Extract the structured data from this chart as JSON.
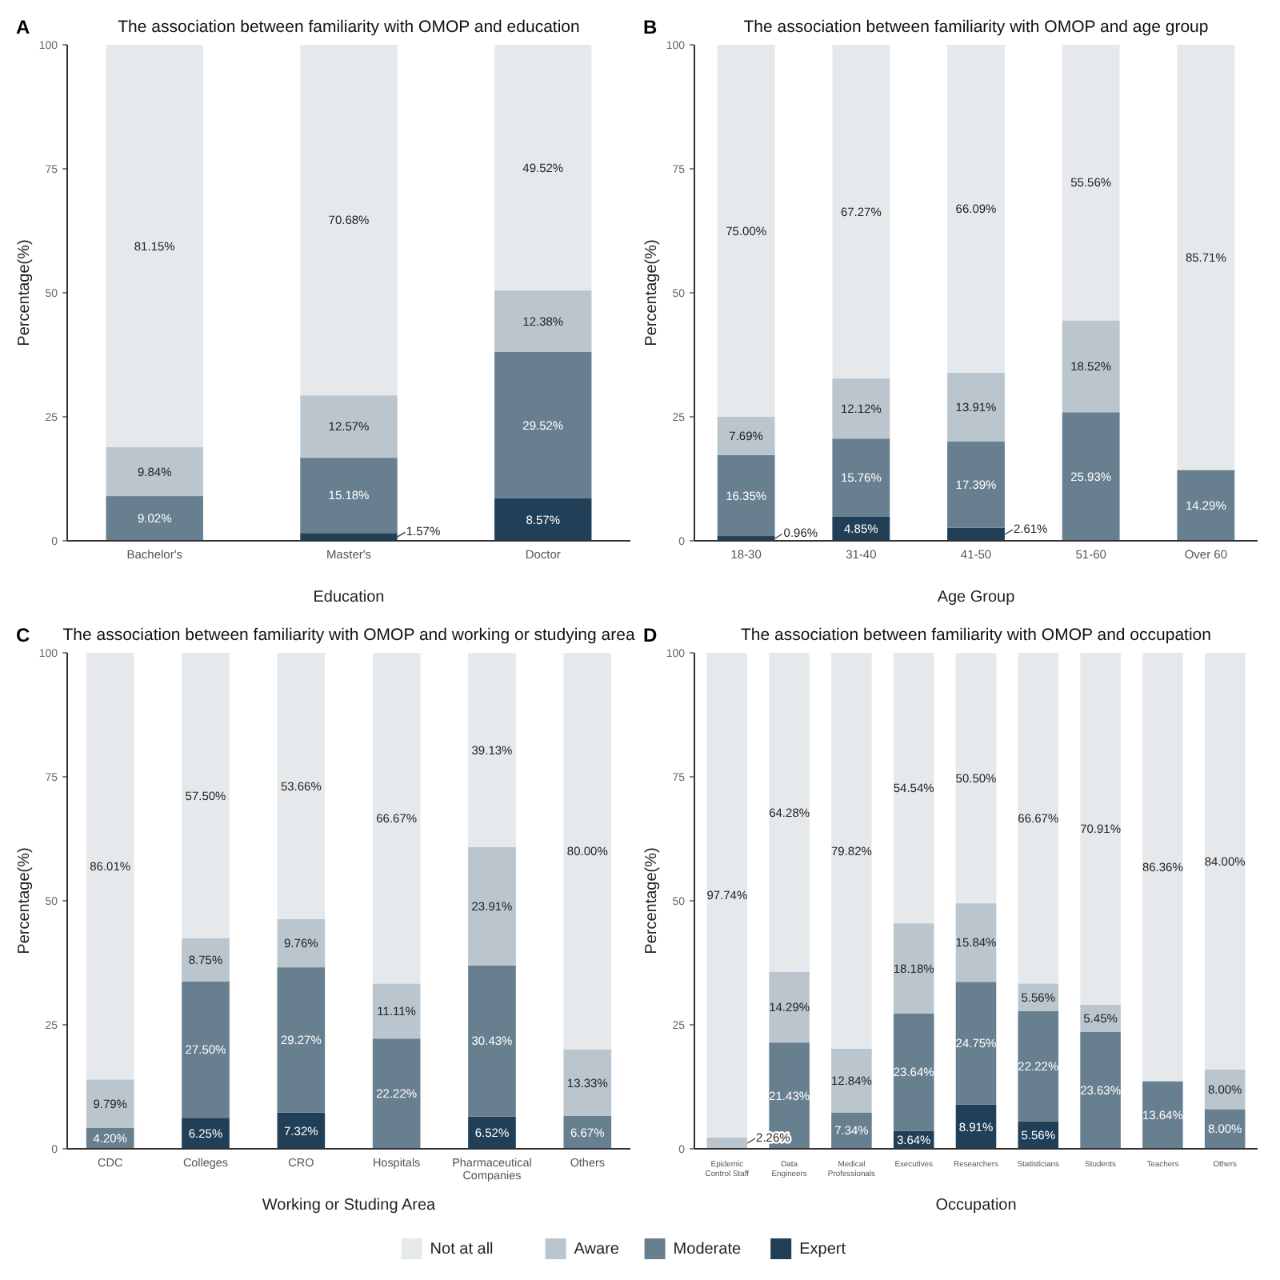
{
  "chart_data": [
    {
      "type": "bar",
      "stacked": true,
      "legend": "bottom",
      "annotations": [
        "A"
      ],
      "title": "The association between familiarity with OMOP and education",
      "xlabel": "Education",
      "ylabel": "Percentage(%)",
      "ylim": [
        0,
        100
      ],
      "yticks": [
        0,
        25,
        50,
        75,
        100
      ],
      "categories": [
        "Bachelor's",
        "Master's",
        "Doctor"
      ],
      "series": [
        {
          "name": "Expert",
          "color": "#213f57",
          "values": [
            null,
            1.57,
            8.57
          ],
          "value_labels": [
            null,
            "1.57%",
            "8.57%"
          ]
        },
        {
          "name": "Moderate",
          "color": "#687f90",
          "values": [
            9.02,
            15.18,
            29.52
          ],
          "value_labels": [
            "9.02%",
            "15.18%",
            "29.52%"
          ]
        },
        {
          "name": "Aware",
          "color": "#bac5cd",
          "values": [
            9.84,
            12.57,
            12.38
          ],
          "value_labels": [
            "9.84%",
            "12.57%",
            "12.38%"
          ]
        },
        {
          "name": "Not at all",
          "color": "#e6e9ec",
          "values": [
            81.15,
            70.68,
            49.52
          ],
          "value_labels": [
            "81.15%",
            "70.68%",
            "49.52%"
          ]
        }
      ]
    },
    {
      "type": "bar",
      "stacked": true,
      "annotations": [
        "B"
      ],
      "title": "The association between familiarity with OMOP and age group",
      "xlabel": "Age Group",
      "ylabel": "Percentage(%)",
      "ylim": [
        0,
        100
      ],
      "yticks": [
        0,
        25,
        50,
        75,
        100
      ],
      "categories": [
        "18-30",
        "31-40",
        "41-50",
        "51-60",
        "Over 60"
      ],
      "series": [
        {
          "color": "#213f57",
          "values": [
            0.96,
            4.85,
            2.61,
            null,
            null
          ],
          "value_labels": [
            "0.96%",
            "4.85%",
            "2.61%",
            null,
            null
          ]
        },
        {
          "color": "#687f90",
          "values": [
            16.35,
            15.76,
            17.39,
            25.93,
            14.29
          ],
          "value_labels": [
            "16.35%",
            "15.76%",
            "17.39%",
            "25.93%",
            "14.29%"
          ]
        },
        {
          "color": "#bac5cd",
          "values": [
            7.69,
            12.12,
            13.91,
            18.52,
            null
          ],
          "value_labels": [
            "7.69%",
            "12.12%",
            "13.91%",
            "18.52%",
            null
          ]
        },
        {
          "color": "#e6e9ec",
          "values": [
            75.0,
            67.27,
            66.09,
            55.56,
            85.71
          ],
          "value_labels": [
            "75.00%",
            "67.27%",
            "66.09%",
            "55.56%",
            "85.71%"
          ]
        }
      ]
    },
    {
      "type": "bar",
      "stacked": true,
      "annotations": [
        "C"
      ],
      "title": "The association between familiarity with OMOP and working or studying area",
      "xlabel": "Working or Studing Area",
      "ylabel": "Percentage(%)",
      "ylim": [
        0,
        100
      ],
      "yticks": [
        0,
        25,
        50,
        75,
        100
      ],
      "categories": [
        "CDC",
        "Colleges",
        "CRO",
        "Hospitals",
        "Pharmaceutical Companies",
        "Others"
      ],
      "series": [
        {
          "color": "#213f57",
          "values": [
            null,
            6.25,
            7.32,
            null,
            6.52,
            null
          ],
          "value_labels": [
            null,
            "6.25%",
            "7.32%",
            null,
            "6.52%",
            null
          ]
        },
        {
          "color": "#687f90",
          "values": [
            4.2,
            27.5,
            29.27,
            22.22,
            30.43,
            6.67
          ],
          "value_labels": [
            "4.20%",
            "27.50%",
            "29.27%",
            "22.22%",
            "30.43%",
            "6.67%"
          ]
        },
        {
          "color": "#bac5cd",
          "values": [
            9.79,
            8.75,
            9.76,
            11.11,
            23.91,
            13.33
          ],
          "value_labels": [
            "9.79%",
            "8.75%",
            "9.76%",
            "11.11%",
            "23.91%",
            "13.33%"
          ]
        },
        {
          "color": "#e6e9ec",
          "values": [
            86.01,
            57.5,
            53.66,
            66.67,
            39.13,
            80.0
          ],
          "value_labels": [
            "86.01%",
            "57.50%",
            "53.66%",
            "66.67%",
            "39.13%",
            "80.00%"
          ]
        }
      ]
    },
    {
      "type": "bar",
      "stacked": true,
      "annotations": [
        "D"
      ],
      "title": "The association between familiarity with OMOP and occupation",
      "xlabel": "Occupation",
      "ylabel": "Percentage(%)",
      "ylim": [
        0,
        100
      ],
      "yticks": [
        0,
        25,
        50,
        75,
        100
      ],
      "categories": [
        "Epidemic Control Staff",
        "Data Engineers",
        "Medical Professionals",
        "Executives",
        "Researchers",
        "Statisticians",
        "Students",
        "Teachers",
        "Others"
      ],
      "series": [
        {
          "color": "#213f57",
          "values": [
            null,
            null,
            null,
            3.64,
            8.91,
            5.56,
            null,
            null,
            null
          ],
          "value_labels": [
            null,
            null,
            null,
            "3.64%",
            "8.91%",
            "5.56%",
            null,
            null,
            null
          ]
        },
        {
          "color": "#687f90",
          "values": [
            null,
            21.43,
            7.34,
            23.64,
            24.75,
            22.22,
            23.63,
            13.64,
            8.0
          ],
          "value_labels": [
            null,
            "21.43%",
            "7.34%",
            "23.64%",
            "24.75%",
            "22.22%",
            "23.63%",
            "13.64%",
            "8.00%"
          ]
        },
        {
          "color": "#bac5cd",
          "values": [
            2.26,
            14.29,
            12.84,
            18.18,
            15.84,
            5.56,
            5.45,
            null,
            8.0
          ],
          "value_labels": [
            "2.26%",
            "14.29%",
            "12.84%",
            "18.18%",
            "15.84%",
            "5.56%",
            "5.45%",
            null,
            "8.00%"
          ]
        },
        {
          "color": "#e6e9ec",
          "values": [
            97.74,
            64.28,
            79.82,
            54.54,
            50.5,
            66.67,
            70.91,
            86.36,
            84.0
          ],
          "value_labels": [
            "97.74%",
            "64.28%",
            "79.82%",
            "54.54%",
            "50.50%",
            "66.67%",
            "70.91%",
            "86.36%",
            "84.00%"
          ]
        }
      ]
    }
  ]
}
